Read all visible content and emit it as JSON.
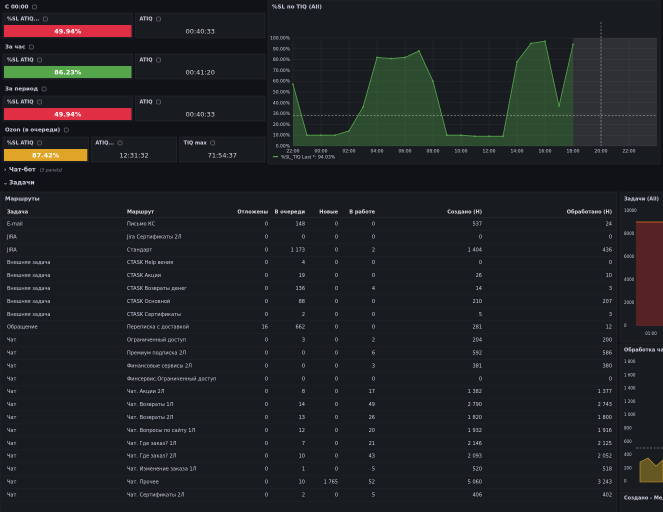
{
  "stats": [
    {
      "title": "С 00:00",
      "panels": [
        {
          "title": "%SL ATIQ...",
          "value": "49.94%",
          "color": "#e02f44"
        },
        {
          "title": "ATIQ",
          "value": "00:40:33"
        }
      ]
    },
    {
      "title": "За час",
      "panels": [
        {
          "title": "%SL ATIQ",
          "value": "86.23%",
          "color": "#56a64b"
        },
        {
          "title": "ATIQ",
          "value": "00:41:20"
        }
      ]
    },
    {
      "title": "За период",
      "panels": [
        {
          "title": "%SL ATIQ",
          "value": "49.94%",
          "color": "#e02f44"
        },
        {
          "title": "ATIQ",
          "value": "00:40:33"
        }
      ]
    },
    {
      "title": "Ozon (в очереди)",
      "panels": [
        {
          "title": "%SL ATIQ",
          "value": "87.42%",
          "color": "#e0a526"
        },
        {
          "title": "ATIQ...",
          "value": "12:31:32"
        },
        {
          "title": "TIQ max",
          "value": "71:54:37"
        }
      ]
    }
  ],
  "chart_data": {
    "type": "area",
    "title": "%SL по TIQ (All)",
    "x": [
      -2,
      -1,
      0,
      1,
      2,
      3,
      4,
      5,
      6,
      7,
      8,
      9,
      10,
      11,
      12,
      13,
      14,
      15,
      16,
      17,
      18
    ],
    "values": [
      57,
      10,
      10,
      10,
      14,
      36,
      82,
      81,
      82,
      88,
      60,
      10,
      10,
      9,
      9,
      9,
      78,
      95,
      97,
      37,
      94.03
    ],
    "color": "#56a64b",
    "xlim": [
      -2,
      24
    ],
    "xticks": [
      {
        "value": -2,
        "label": "22:00"
      },
      {
        "value": 0,
        "label": "00:00"
      },
      {
        "value": 2,
        "label": "02:00"
      },
      {
        "value": 4,
        "label": "04:00"
      },
      {
        "value": 6,
        "label": "06:00"
      },
      {
        "value": 8,
        "label": "08:00"
      },
      {
        "value": 10,
        "label": "10:00"
      },
      {
        "value": 12,
        "label": "12:00"
      },
      {
        "value": 14,
        "label": "14:00"
      },
      {
        "value": 16,
        "label": "16:00"
      },
      {
        "value": 18,
        "label": "18:00"
      },
      {
        "value": 20,
        "label": "20:00"
      },
      {
        "value": 22,
        "label": "22:00"
      }
    ],
    "ylim": [
      0,
      100
    ],
    "yticks": [
      {
        "value": 0,
        "label": "0.00%"
      },
      {
        "value": 10,
        "label": "10.00%"
      },
      {
        "value": 20,
        "label": "20.00%"
      },
      {
        "value": 30,
        "label": "30.00%"
      },
      {
        "value": 40,
        "label": "40.00%"
      },
      {
        "value": 50,
        "label": "50.00%"
      },
      {
        "value": 60,
        "label": "60.00%"
      },
      {
        "value": 70,
        "label": "70.00%"
      },
      {
        "value": 80,
        "label": "80.00%"
      },
      {
        "value": 90,
        "label": "90.00%"
      },
      {
        "value": 100,
        "label": "100.00%"
      }
    ],
    "threshold": 28,
    "time_marker": 20,
    "legend": "%SL_TIQ  Last *: 94.03%"
  },
  "rows_collapsed": {
    "title": "Чат-бот",
    "note": "(3 panels)"
  },
  "section": "Задачи",
  "table": {
    "title": "Маршруты",
    "columns": [
      "Задача",
      "Маршрут",
      "Отложены",
      "В очереди",
      "Новые",
      "В работе",
      "Создано (H)",
      "Обработано (H)"
    ],
    "rows": [
      [
        "E-mail",
        "Письмо КС",
        "0",
        "148",
        "0",
        "0",
        "537",
        "24"
      ],
      [
        "JIRA",
        "Jira Сертификаты 2Л",
        "0",
        "0",
        "0",
        "0",
        "0",
        "0"
      ],
      [
        "JIRA",
        "Стандарт",
        "0",
        "1 173",
        "0",
        "2",
        "1 404",
        "436"
      ],
      [
        "Внешняя задача",
        "CTASK Help вения",
        "0",
        "4",
        "0",
        "0",
        "0",
        "0"
      ],
      [
        "Внешняя задача",
        "CTASK Акции",
        "0",
        "19",
        "0",
        "0",
        "26",
        "10"
      ],
      [
        "Внешняя задача",
        "CTASK Возвраты денег",
        "0",
        "136",
        "0",
        "4",
        "14",
        "3"
      ],
      [
        "Внешняя задача",
        "CTASK Основной",
        "0",
        "88",
        "0",
        "0",
        "210",
        "207"
      ],
      [
        "Внешняя задача",
        "CTASK Сертификаты",
        "0",
        "2",
        "0",
        "0",
        "5",
        "3"
      ],
      [
        "Обращение",
        "Переписка с доставкой",
        "16",
        "662",
        "0",
        "0",
        "281",
        "12"
      ],
      [
        "Чат",
        "Ограниченный доступ",
        "0",
        "3",
        "0",
        "2",
        "204",
        "200"
      ],
      [
        "Чат",
        "Премиум подписка 2Л",
        "0",
        "0",
        "0",
        "6",
        "592",
        "586"
      ],
      [
        "Чат",
        "Финансовые сервисы 2Л",
        "0",
        "0",
        "0",
        "3",
        "381",
        "380"
      ],
      [
        "Чат",
        "Финсервис.Ограниченный доступ",
        "0",
        "0",
        "0",
        "0",
        "0",
        "0"
      ],
      [
        "Чат",
        "Чат. Акции 2Л",
        "0",
        "8",
        "0",
        "17",
        "1 382",
        "1 377"
      ],
      [
        "Чат",
        "Чат. Возвраты 1Л",
        "0",
        "14",
        "0",
        "49",
        "2 790",
        "2 743"
      ],
      [
        "Чат",
        "Чат. Возвраты 2Л",
        "0",
        "13",
        "0",
        "26",
        "1 820",
        "1 800"
      ],
      [
        "Чат",
        "Чат. Вопросы по сайту 1Л",
        "0",
        "12",
        "0",
        "20",
        "1 932",
        "1 916"
      ],
      [
        "Чат",
        "Чат. Где заказ? 1Л",
        "0",
        "7",
        "0",
        "21",
        "2 146",
        "2 125"
      ],
      [
        "Чат",
        "Чат. Где заказ? 2Л",
        "0",
        "10",
        "0",
        "43",
        "2 093",
        "2 052"
      ],
      [
        "Чат",
        "Чат. Изменение заказа 1Л",
        "0",
        "1",
        "0",
        "5",
        "520",
        "518"
      ],
      [
        "Чат",
        "Чат. Прочее",
        "0",
        "10",
        "1 765",
        "52",
        "5 060",
        "3 243"
      ],
      [
        "Чат",
        "Чат. Сертификаты 2Л",
        "0",
        "2",
        "0",
        "5",
        "406",
        "402"
      ]
    ]
  },
  "side_panels": [
    {
      "title": "Задачи (All)",
      "ticks": [
        "10000",
        "8000",
        "6000",
        "4000",
        "2000",
        "0"
      ],
      "x_label": "01:00"
    },
    {
      "title": "Обработка чат",
      "ticks": [
        "1 800",
        "1 600",
        "1 400",
        "1 200",
        "1 000",
        "800",
        "600",
        "400",
        "200",
        "0"
      ]
    },
    {
      "title": "Создано - Мед"
    }
  ]
}
